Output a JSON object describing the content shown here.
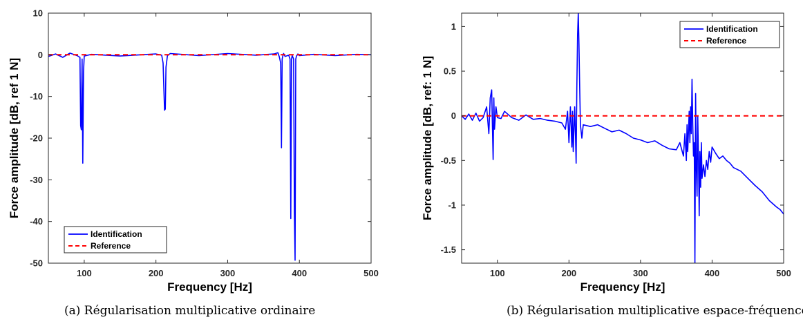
{
  "captions": [
    "(a) Régularisation multiplicative ordinaire",
    "(b) Régularisation multiplicative espace-fréquence"
  ],
  "colors": {
    "identification": "#0000ff",
    "reference": "#ff0000",
    "axis": "#262626"
  },
  "chart_data": [
    {
      "type": "line",
      "xlabel": "Frequency [Hz]",
      "ylabel": "Force amplitude [dB, ref 1 N]",
      "xlim": [
        50,
        500
      ],
      "ylim": [
        -50,
        10
      ],
      "xticks": [
        100,
        200,
        300,
        400,
        500
      ],
      "yticks": [
        10,
        0,
        -10,
        -20,
        -30,
        -40,
        -50
      ],
      "legend": "bottom-left",
      "grid": false,
      "series": [
        {
          "name": "Identification",
          "style": "solid",
          "x": [
            50,
            60,
            70,
            80,
            90,
            94,
            95,
            96,
            97,
            98,
            99,
            100,
            110,
            150,
            200,
            208,
            210,
            211,
            212,
            213,
            214,
            216,
            220,
            260,
            300,
            340,
            365,
            370,
            372,
            374,
            375,
            376,
            377,
            378,
            380,
            385,
            387,
            388,
            389,
            390,
            392,
            393,
            394,
            395,
            396,
            398,
            400,
            420,
            450,
            480,
            500
          ],
          "y": [
            -0.4,
            0.2,
            -0.6,
            0.4,
            -0.2,
            -0.6,
            -17,
            -18,
            -1,
            -26,
            -4,
            -0.3,
            0.1,
            -0.3,
            0.2,
            -0.1,
            -2,
            -8,
            -13.3,
            -13,
            -3,
            -0.2,
            0.3,
            -0.2,
            0.3,
            -0.1,
            0.2,
            0.5,
            -0.5,
            -2,
            -22.3,
            -1,
            -0.2,
            0.3,
            -0.4,
            -0.1,
            -1,
            -39.3,
            -1,
            -0.2,
            -1,
            -38,
            -49.3,
            -1,
            -0.3,
            0.2,
            -0.2,
            0.1,
            -0.2,
            0.1,
            0
          ]
        },
        {
          "name": "Reference",
          "style": "dashed",
          "x": [
            50,
            500
          ],
          "y": [
            0,
            0
          ]
        }
      ]
    },
    {
      "type": "line",
      "xlabel": "Frequency [Hz]",
      "ylabel": "Force amplitude [dB, ref: 1 N]",
      "xlim": [
        50,
        500
      ],
      "ylim": [
        -1.65,
        1.15
      ],
      "xticks": [
        100,
        200,
        300,
        400,
        500
      ],
      "yticks": [
        1,
        0.5,
        0,
        -0.5,
        -1,
        -1.5
      ],
      "yticklabels": [
        "1",
        "0.5",
        "0",
        "-0.5",
        "-1",
        "-1.5"
      ],
      "legend": "top-right",
      "grid": false,
      "series": [
        {
          "name": "Identification",
          "style": "solid",
          "x": [
            50,
            55,
            60,
            65,
            70,
            75,
            80,
            85,
            88,
            90,
            92,
            93,
            94,
            95,
            96,
            98,
            100,
            105,
            110,
            120,
            130,
            140,
            150,
            160,
            170,
            180,
            190,
            195,
            198,
            200,
            202,
            204,
            205,
            206,
            208,
            209,
            210,
            211,
            212,
            213,
            214,
            215,
            216,
            218,
            220,
            230,
            240,
            250,
            260,
            270,
            280,
            290,
            300,
            310,
            320,
            330,
            340,
            350,
            355,
            360,
            362,
            364,
            365,
            366,
            368,
            369,
            370,
            371,
            372,
            373,
            374,
            375,
            376,
            377,
            378,
            379,
            380,
            381,
            382,
            383,
            384,
            385,
            386,
            388,
            390,
            392,
            394,
            396,
            398,
            400,
            405,
            410,
            415,
            420,
            425,
            430,
            440,
            450,
            460,
            470,
            480,
            490,
            495,
            500
          ],
          "y": [
            0,
            -0.04,
            0.02,
            -0.05,
            0.03,
            -0.06,
            -0.02,
            0.1,
            -0.2,
            0.2,
            0.29,
            -0.1,
            -0.49,
            0.2,
            -0.15,
            0.1,
            -0.02,
            -0.03,
            0.05,
            -0.02,
            -0.05,
            0.01,
            -0.04,
            -0.03,
            -0.05,
            -0.06,
            -0.08,
            -0.15,
            0.05,
            -0.3,
            0.1,
            -0.35,
            0.05,
            -0.4,
            0.1,
            -0.2,
            -0.53,
            0.3,
            0.9,
            1.15,
            0.8,
            0.3,
            -0.1,
            -0.25,
            -0.1,
            -0.12,
            -0.1,
            -0.14,
            -0.18,
            -0.16,
            -0.2,
            -0.25,
            -0.27,
            -0.3,
            -0.28,
            -0.33,
            -0.37,
            -0.38,
            -0.3,
            -0.45,
            -0.2,
            -0.5,
            -0.1,
            -0.4,
            0.05,
            -0.3,
            0.1,
            -0.2,
            0.41,
            -0.1,
            -0.45,
            -0.3,
            -1.65,
            0.25,
            -0.6,
            -0.9,
            0.0,
            -0.5,
            -1.12,
            -0.4,
            -0.8,
            -0.3,
            -0.7,
            -0.55,
            -0.68,
            -0.5,
            -0.6,
            -0.4,
            -0.52,
            -0.35,
            -0.42,
            -0.48,
            -0.45,
            -0.5,
            -0.53,
            -0.58,
            -0.62,
            -0.7,
            -0.78,
            -0.85,
            -0.95,
            -1.02,
            -1.05,
            -1.1
          ]
        },
        {
          "name": "Reference",
          "style": "dashed",
          "x": [
            50,
            500
          ],
          "y": [
            0,
            0
          ]
        }
      ]
    }
  ]
}
